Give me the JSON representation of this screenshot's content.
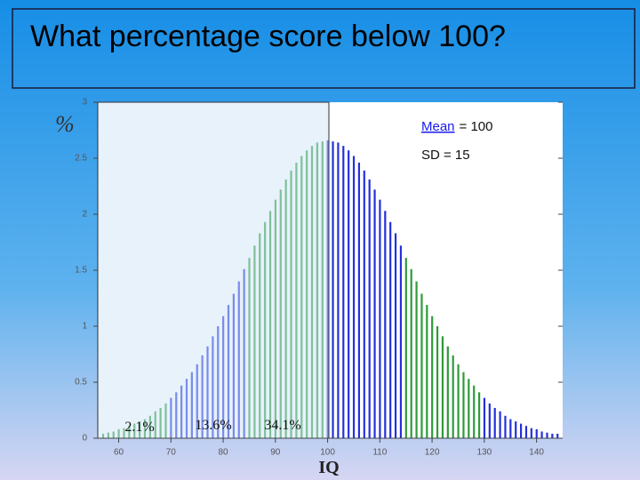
{
  "chart_data": {
    "type": "bar",
    "title": "What percentage score below 100?",
    "ylabel": "%",
    "xlabel": "IQ",
    "mean_annotation": {
      "link": "Mean",
      "rest": "= 100"
    },
    "sd_annotation": "SD = 15",
    "region_labels": [
      "2.1%",
      "13.6%",
      "34.1%"
    ],
    "x": [
      57,
      58,
      59,
      60,
      61,
      62,
      63,
      64,
      65,
      66,
      67,
      68,
      69,
      70,
      71,
      72,
      73,
      74,
      75,
      76,
      77,
      78,
      79,
      80,
      81,
      82,
      83,
      84,
      85,
      86,
      87,
      88,
      89,
      90,
      91,
      92,
      93,
      94,
      95,
      96,
      97,
      98,
      99,
      100,
      101,
      102,
      103,
      104,
      105,
      106,
      107,
      108,
      109,
      110,
      111,
      112,
      113,
      114,
      115,
      116,
      117,
      118,
      119,
      120,
      121,
      122,
      123,
      124,
      125,
      126,
      127,
      128,
      129,
      130,
      131,
      132,
      133,
      134,
      135,
      136,
      137,
      138,
      139,
      140,
      141,
      142,
      143,
      144
    ],
    "series": [
      {
        "color": "#2f9a3a",
        "values": [
          0.04,
          0.05,
          0.06,
          0.08,
          0.09,
          0.11,
          0.13,
          0.15,
          0.17,
          0.2,
          0.24,
          0.27,
          0.31,
          null,
          null,
          null,
          null,
          null,
          null,
          null,
          null,
          null,
          null,
          null,
          null,
          null,
          null,
          null,
          1.61,
          1.72,
          1.83,
          1.93,
          2.03,
          2.13,
          2.22,
          2.31,
          2.39,
          2.46,
          2.52,
          2.57,
          2.61,
          2.64,
          2.65,
          null,
          null,
          null,
          null,
          null,
          null,
          null,
          null,
          null,
          null,
          null,
          null,
          null,
          null,
          null,
          1.61,
          1.51,
          1.4,
          1.29,
          1.19,
          1.09,
          1.0,
          0.91,
          0.82,
          0.74,
          0.66,
          0.59,
          0.53,
          0.47,
          0.41,
          null,
          null,
          null,
          null,
          null,
          null,
          null,
          null,
          null,
          null,
          null,
          null,
          null,
          null,
          null
        ]
      },
      {
        "color": "#2430dc",
        "values": [
          null,
          null,
          null,
          null,
          null,
          null,
          null,
          null,
          null,
          null,
          null,
          null,
          null,
          0.36,
          0.41,
          0.47,
          0.53,
          0.59,
          0.66,
          0.74,
          0.82,
          0.91,
          1.0,
          1.09,
          1.19,
          1.29,
          1.4,
          1.51,
          null,
          null,
          null,
          null,
          null,
          null,
          null,
          null,
          null,
          null,
          null,
          null,
          null,
          null,
          null,
          2.66,
          2.65,
          2.64,
          2.61,
          2.57,
          2.52,
          2.46,
          2.39,
          2.31,
          2.22,
          2.13,
          2.03,
          1.93,
          1.83,
          1.72,
          null,
          null,
          null,
          null,
          null,
          null,
          null,
          null,
          null,
          null,
          null,
          null,
          null,
          null,
          null,
          0.36,
          0.31,
          0.27,
          0.24,
          0.2,
          0.17,
          0.15,
          0.13,
          0.11,
          0.09,
          0.08,
          0.06,
          0.05,
          0.04,
          0.04
        ]
      }
    ],
    "xlim": [
      56,
      145
    ],
    "xticks": [
      60,
      70,
      80,
      90,
      100,
      110,
      120,
      130,
      140
    ],
    "ylim": [
      0,
      3
    ],
    "yticks": [
      0,
      0.5,
      1,
      1.5,
      2,
      2.5,
      3
    ]
  }
}
